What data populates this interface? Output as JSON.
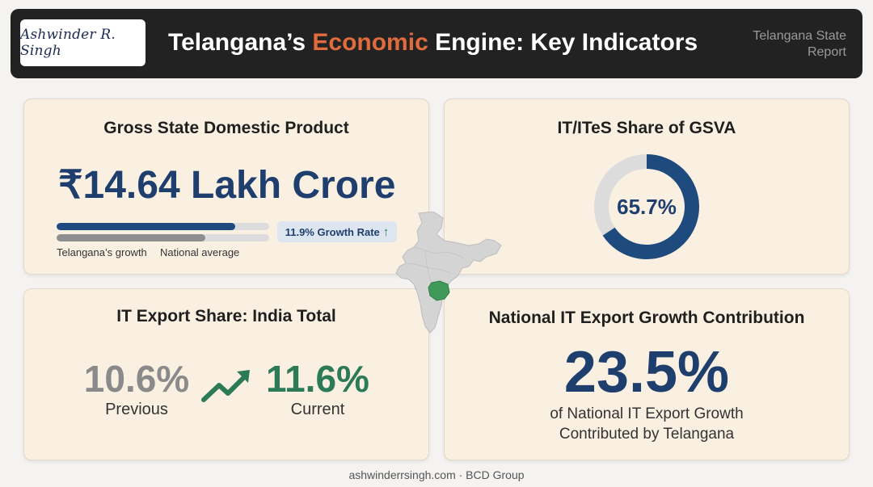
{
  "header": {
    "logo_text": "Ashwinder R. Singh",
    "title_prefix": "Telangana’s ",
    "title_highlight": "Economic",
    "title_suffix": " Engine: Key Indicators",
    "report_label": "Telangana State Report",
    "highlight_color": "#e06b3c"
  },
  "gsdp": {
    "title": "Gross State Domestic Product",
    "value": "₹14.64 Lakh Crore",
    "growth_badge": "11.9% Growth Rate",
    "growth_arrow_icon": "arrow-up-icon",
    "bars": [
      {
        "label": "Telangana’s growth",
        "fraction": 0.84,
        "color": "#1e4a7e"
      },
      {
        "label": "National average",
        "fraction": 0.7,
        "color": "#8e8e8e"
      }
    ]
  },
  "it_share": {
    "title": "IT/ITeS Share of GSVA",
    "value": "65.7%",
    "fraction": 0.657,
    "ring_color": "#1e4a7e",
    "track_color": "#dcdcdc"
  },
  "export_share": {
    "title": "IT Export Share: India Total",
    "previous_value": "10.6%",
    "previous_label": "Previous",
    "current_value": "11.6%",
    "current_label": "Current",
    "trend_icon": "trend-up-icon",
    "previous_color": "#8a8a8a",
    "current_color": "#2d7a56"
  },
  "national": {
    "title": "National IT Export Growth Contribution",
    "value": "23.5%",
    "caption_line1": "of National IT Export Growth",
    "caption_line2": "Contributed by Telangana"
  },
  "map": {
    "icon": "india-map-icon",
    "highlight_color": "#3f9a5a"
  },
  "footer": {
    "text": "ashwinderrsingh.com · BCD Group"
  }
}
